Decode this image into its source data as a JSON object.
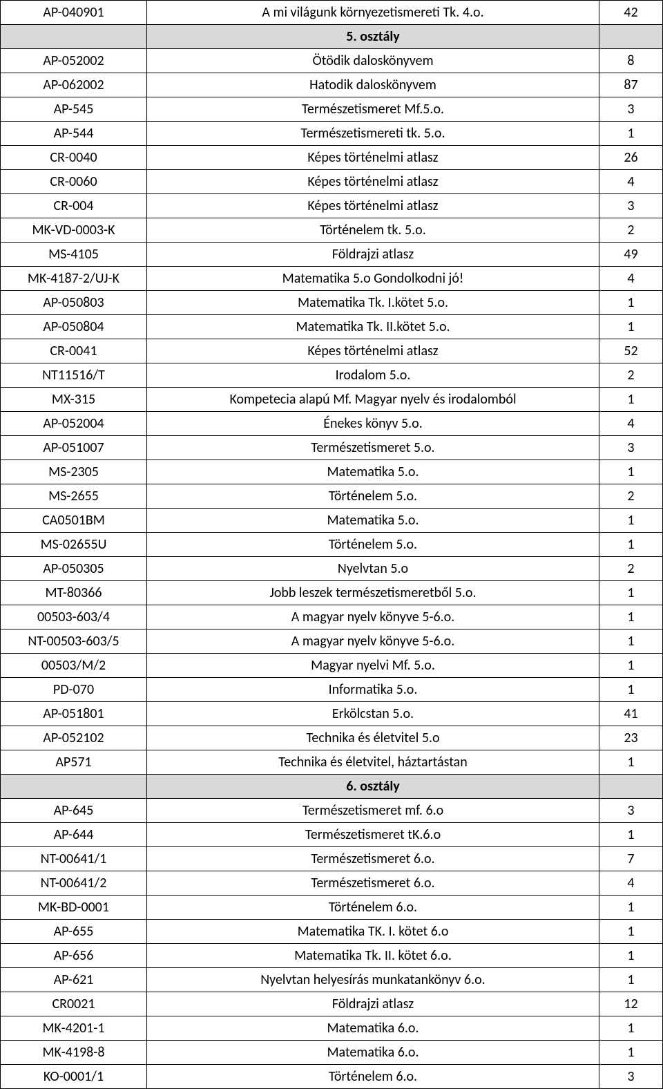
{
  "rows": [
    {
      "type": "data",
      "code": "AP-040901",
      "title": "A mi világunk környezetismereti Tk. 4.o.",
      "qty": "42"
    },
    {
      "type": "section",
      "title": "5. osztály"
    },
    {
      "type": "data",
      "code": "AP-052002",
      "title": "Ötödik daloskönyvem",
      "qty": "8"
    },
    {
      "type": "data",
      "code": "AP-062002",
      "title": "Hatodik daloskönyvem",
      "qty": "87"
    },
    {
      "type": "data",
      "code": "AP-545",
      "title": "Természetismeret Mf.5.o.",
      "qty": "3"
    },
    {
      "type": "data",
      "code": "AP-544",
      "title": "Természetismereti tk. 5.o.",
      "qty": "1"
    },
    {
      "type": "data",
      "code": "CR-0040",
      "title": "Képes történelmi atlasz",
      "qty": "26"
    },
    {
      "type": "data",
      "code": "CR-0060",
      "title": "Képes történelmi atlasz",
      "qty": "4"
    },
    {
      "type": "data",
      "code": "CR-004",
      "title": "Képes történelmi atlasz",
      "qty": "3"
    },
    {
      "type": "data",
      "code": "MK-VD-0003-K",
      "title": "Történelem tk. 5.o.",
      "qty": "2"
    },
    {
      "type": "data",
      "code": "MS-4105",
      "title": "Földrajzi atlasz",
      "qty": "49"
    },
    {
      "type": "data",
      "code": "MK-4187-2/UJ-K",
      "title": "Matematika 5.o Gondolkodni jó!",
      "qty": "4"
    },
    {
      "type": "data",
      "code": "AP-050803",
      "title": "Matematika Tk. I.kötet 5.o.",
      "qty": "1"
    },
    {
      "type": "data",
      "code": "AP-050804",
      "title": "Matematika Tk. II.kötet 5.o.",
      "qty": "1"
    },
    {
      "type": "data",
      "code": "CR-0041",
      "title": "Képes történelmi atlasz",
      "qty": "52"
    },
    {
      "type": "data",
      "code": "NT11516/T",
      "title": "Irodalom 5.o.",
      "qty": "2"
    },
    {
      "type": "data",
      "code": "MX-315",
      "title": "Kompetecia alapú Mf. Magyar nyelv és irodalomból",
      "qty": "1"
    },
    {
      "type": "data",
      "code": "AP-052004",
      "title": "Énekes könyv 5.o.",
      "qty": "4"
    },
    {
      "type": "data",
      "code": "AP-051007",
      "title": "Természetismeret 5.o.",
      "qty": "3"
    },
    {
      "type": "data",
      "code": "MS-2305",
      "title": "Matematika 5.o.",
      "qty": "1"
    },
    {
      "type": "data",
      "code": "MS-2655",
      "title": "Történelem 5.o.",
      "qty": "2"
    },
    {
      "type": "data",
      "code": "CA0501BM",
      "title": "Matematika 5.o.",
      "qty": "1"
    },
    {
      "type": "data",
      "code": "MS-02655U",
      "title": "Történelem 5.o.",
      "qty": "1"
    },
    {
      "type": "data",
      "code": "AP-050305",
      "title": "Nyelvtan 5.o",
      "qty": "2"
    },
    {
      "type": "data",
      "code": "MT-80366",
      "title": "Jobb leszek természetismeretből 5.o.",
      "qty": "1"
    },
    {
      "type": "data",
      "code": "00503-603/4",
      "title": "A magyar nyelv könyve 5-6.o.",
      "qty": "1"
    },
    {
      "type": "data",
      "code": "NT-00503-603/5",
      "title": "A magyar nyelv könyve 5-6.o.",
      "qty": "1"
    },
    {
      "type": "data",
      "code": "00503/M/2",
      "title": "Magyar nyelvi Mf. 5.o.",
      "qty": "1"
    },
    {
      "type": "data",
      "code": "PD-070",
      "title": "Informatika 5.o.",
      "qty": "1"
    },
    {
      "type": "data",
      "code": "AP-051801",
      "title": "Erkölcstan 5.o.",
      "qty": "41"
    },
    {
      "type": "data",
      "code": "AP-052102",
      "title": "Technika és életvitel 5.o",
      "qty": "23"
    },
    {
      "type": "data",
      "code": "AP571",
      "title": "Technika és életvitel, háztartástan",
      "qty": "1"
    },
    {
      "type": "section",
      "title": "6. osztály"
    },
    {
      "type": "data",
      "code": "AP-645",
      "title": "Természetismeret mf. 6.o",
      "qty": "3"
    },
    {
      "type": "data",
      "code": "AP-644",
      "title": "Természetismeret tK.6.o",
      "qty": "1"
    },
    {
      "type": "data",
      "code": "NT-00641/1",
      "title": "Természetismeret 6.o.",
      "qty": "7"
    },
    {
      "type": "data",
      "code": "NT-00641/2",
      "title": "Természetismeret 6.o.",
      "qty": "4"
    },
    {
      "type": "data",
      "code": "MK-BD-0001",
      "title": "Történelem 6.o.",
      "qty": "1"
    },
    {
      "type": "data",
      "code": "AP-655",
      "title": "Matematika TK. I. kötet 6.o",
      "qty": "1"
    },
    {
      "type": "data",
      "code": "AP-656",
      "title": "Matematika Tk. II. kötet 6.o.",
      "qty": "1"
    },
    {
      "type": "data",
      "code": "AP-621",
      "title": "Nyelvtan helyesírás munkatankönyv 6.o.",
      "qty": "1"
    },
    {
      "type": "data",
      "code": "CR0021",
      "title": "Földrajzi atlasz",
      "qty": "12"
    },
    {
      "type": "data",
      "code": "MK-4201-1",
      "title": "Matematika 6.o.",
      "qty": "1"
    },
    {
      "type": "data",
      "code": "MK-4198-8",
      "title": "Matematika 6.o.",
      "qty": "1"
    },
    {
      "type": "data",
      "code": "KO-0001/1",
      "title": "Történelem 6.o.",
      "qty": "3"
    }
  ]
}
